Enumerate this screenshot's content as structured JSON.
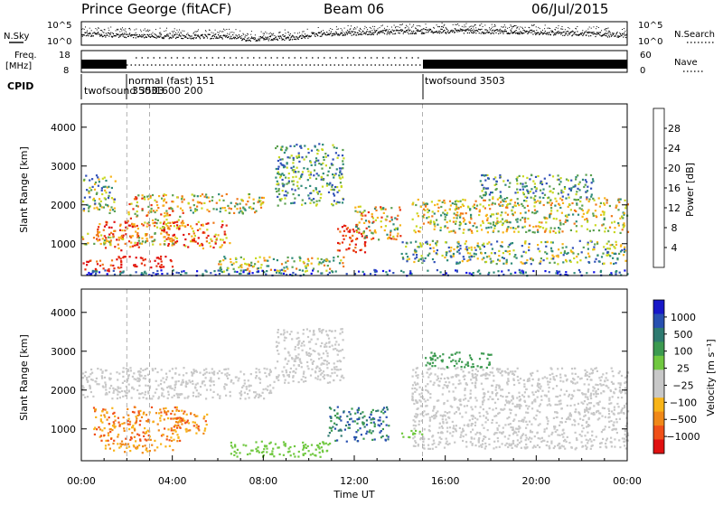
{
  "header": {
    "station": "Prince George (fitACF)",
    "beam": "Beam 06",
    "date": "06/Jul/2015"
  },
  "noise_panel": {
    "left_label": "N.Sky",
    "right_label": "N.Search",
    "tick_top": "10^5",
    "tick_bottom": "10^0"
  },
  "freq_panel": {
    "label_line1": "Freq.",
    "label_line2": "[MHz]",
    "right_label": "Nave",
    "left_tick_top": "18",
    "left_tick_bottom": "8",
    "right_tick_top": "60",
    "right_tick_bottom": "0"
  },
  "cpid_panel": {
    "label": "CPID",
    "segments": [
      {
        "name": "twofsound 3503",
        "start": 0.0
      },
      {
        "name": "3503",
        "start": 2.0
      },
      {
        "name": "normal (fast) 151",
        "start": 2.0
      },
      {
        "name": "1600 200",
        "start": 3.0
      },
      {
        "name": "twofsound 3503",
        "start": 15.0
      }
    ]
  },
  "chart_data": [
    {
      "type": "heatmap",
      "name": "power",
      "ylabel": "Slant Range [km]",
      "yticks": [
        1000,
        2000,
        3000,
        4000
      ],
      "ylim": [
        180,
        4600
      ],
      "xlim": [
        0,
        24
      ],
      "colorbar": {
        "label": "Power [dB]",
        "ticks": [
          "4",
          "8",
          "12",
          "16",
          "20",
          "24",
          "28"
        ],
        "colors": [
          "#1010e8",
          "#3050b8",
          "#2e8a78",
          "#5aa050",
          "#c8d820",
          "#f8b418",
          "#f07818",
          "#e83010",
          "#e01010"
        ]
      }
    },
    {
      "type": "heatmap",
      "name": "velocity",
      "ylabel": "Slant Range [km]",
      "yticks": [
        1000,
        2000,
        3000,
        4000
      ],
      "ylim": [
        180,
        4600
      ],
      "xlim": [
        0,
        24
      ],
      "colorbar": {
        "label": "Velocity [m s⁻¹]",
        "ticks": [
          "1000",
          "500",
          "100",
          "25",
          "−25",
          "−100",
          "−500",
          "−1000"
        ],
        "colors": [
          "#1818c8",
          "#2850b0",
          "#2e7a70",
          "#3c9a50",
          "#70c840",
          "#c8c8c8",
          "#c8c8c8",
          "#f8b418",
          "#f08818",
          "#f05018",
          "#e01010"
        ]
      }
    }
  ],
  "xaxis": {
    "label": "Time UT",
    "ticks": [
      "00:00",
      "04:00",
      "08:00",
      "12:00",
      "16:00",
      "20:00",
      "00:00"
    ]
  }
}
